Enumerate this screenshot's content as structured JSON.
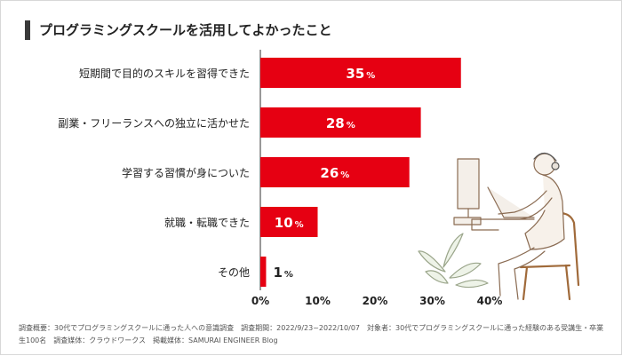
{
  "title": "プログラミングスクールを活用してよかったこと",
  "footnote": "調査概要：30代でプログラミングスクールに通った人への意識調査　調査期間：2022/9/23~2022/10/07　対象者：30代でプログラミングスクールに通った経験のある受講生・卒業生100名　調査媒体：クラウドワークス　掲載媒体：SAMURAI ENGINEER Blog",
  "colors": {
    "bar": "#e60012",
    "axis": "#555555",
    "label_inside": "#ffffff",
    "label_outside": "#222222"
  },
  "chart_data": {
    "type": "bar",
    "orientation": "horizontal",
    "title": "プログラミングスクールを活用してよかったこと",
    "categories": [
      "短期間で目的のスキルを習得できた",
      "副業・フリーランスへの独立に活かせた",
      "学習する習慣が身についた",
      "就職・転職できた",
      "その他"
    ],
    "values": [
      35,
      28,
      26,
      10,
      1
    ],
    "value_suffix": "%",
    "xlim": [
      0,
      40
    ],
    "xticks": [
      "0%",
      "10%",
      "20%",
      "30%",
      "40%"
    ],
    "grid": false
  }
}
